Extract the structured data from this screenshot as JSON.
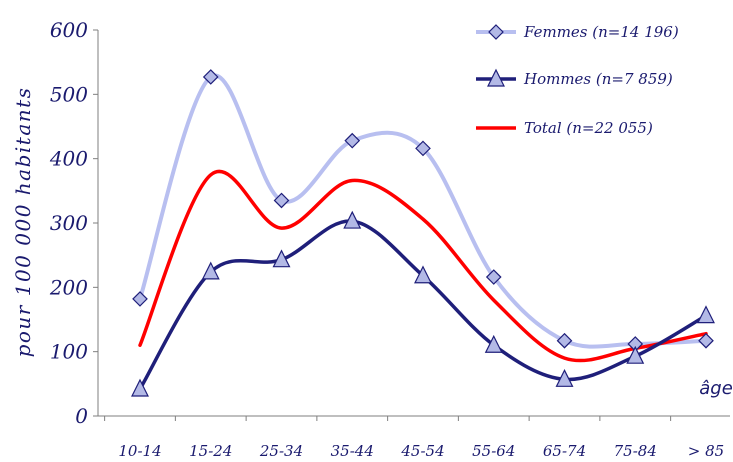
{
  "chart_data": {
    "type": "line",
    "categories": [
      "10-14",
      "15-24",
      "25-34",
      "35-44",
      "45-54",
      "55-64",
      "65-74",
      "75-84",
      "> 85"
    ],
    "series": [
      {
        "name": "Femmes (n=14 196)",
        "values": [
          182,
          527,
          335,
          428,
          416,
          216,
          117,
          112,
          117
        ],
        "color": "#b8bff0",
        "marker": "diamond"
      },
      {
        "name": "Hommes (n=7 859)",
        "values": [
          42,
          224,
          243,
          303,
          218,
          110,
          57,
          93,
          156
        ],
        "color": "#1f1f7a",
        "marker": "triangle"
      },
      {
        "name": "Total (n=22 055)",
        "values": [
          110,
          375,
          292,
          366,
          306,
          180,
          90,
          105,
          128
        ],
        "color": "#ff0000",
        "marker": "none"
      }
    ],
    "yticks": [
      "0",
      "100",
      "200",
      "300",
      "400",
      "500",
      "600"
    ],
    "ylim": [
      0,
      600
    ],
    "ylabel": "pour 100 000 habitants",
    "xlabel": "âge",
    "grid": false,
    "legend_position": "top-right"
  }
}
